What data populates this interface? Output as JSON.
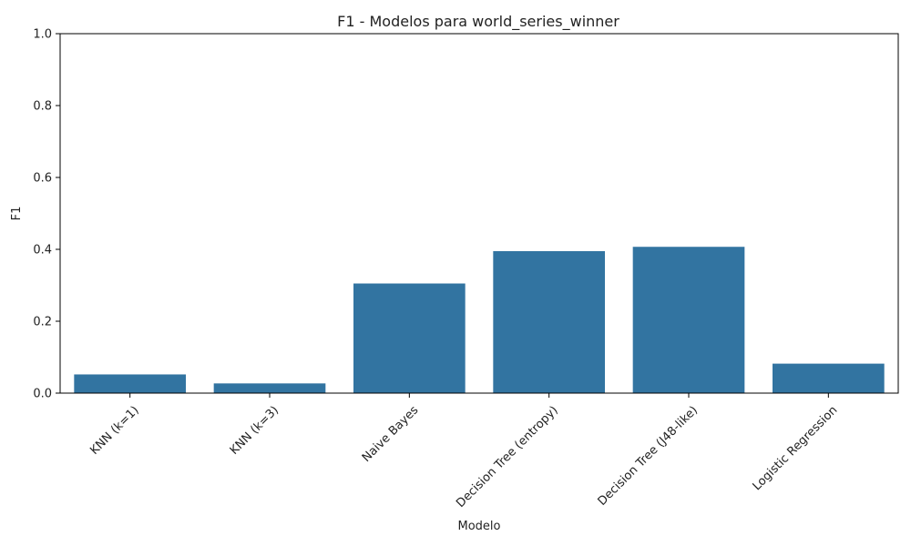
{
  "chart_data": {
    "type": "bar",
    "title": "F1 - Modelos para world_series_winner",
    "xlabel": "Modelo",
    "ylabel": "F1",
    "categories": [
      "KNN (k=1)",
      "KNN (k=3)",
      "Naive Bayes",
      "Decision Tree (entropy)",
      "Decision Tree (J48-like)",
      "Logistic Regression"
    ],
    "values": [
      0.052,
      0.027,
      0.305,
      0.395,
      0.407,
      0.082
    ],
    "ylim": [
      0,
      1.0
    ],
    "yticks": [
      0.0,
      0.2,
      0.4,
      0.6,
      0.8,
      1.0
    ],
    "ytick_labels": [
      "0.0",
      "0.2",
      "0.4",
      "0.6",
      "0.8",
      "1.0"
    ],
    "grid": false,
    "legend": "none",
    "bar_color": "#3274a1",
    "xtick_rotation_deg": 45
  }
}
